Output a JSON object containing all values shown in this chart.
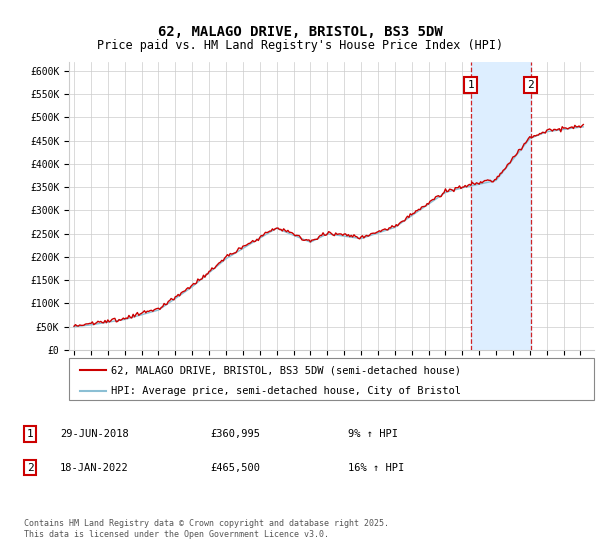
{
  "title": "62, MALAGO DRIVE, BRISTOL, BS3 5DW",
  "subtitle": "Price paid vs. HM Land Registry's House Price Index (HPI)",
  "legend_line1": "62, MALAGO DRIVE, BRISTOL, BS3 5DW (semi-detached house)",
  "legend_line2": "HPI: Average price, semi-detached house, City of Bristol",
  "footnote": "Contains HM Land Registry data © Crown copyright and database right 2025.\nThis data is licensed under the Open Government Licence v3.0.",
  "marker1_date": "29-JUN-2018",
  "marker1_price": "£360,995",
  "marker1_hpi": "9% ↑ HPI",
  "marker1_year": 2018.49,
  "marker1_value": 360995,
  "marker2_date": "18-JAN-2022",
  "marker2_price": "£465,500",
  "marker2_hpi": "16% ↑ HPI",
  "marker2_year": 2022.04,
  "marker2_value": 465500,
  "ylim": [
    0,
    620000
  ],
  "xlim_start": 1994.7,
  "xlim_end": 2025.8,
  "yticks": [
    0,
    50000,
    100000,
    150000,
    200000,
    250000,
    300000,
    350000,
    400000,
    450000,
    500000,
    550000,
    600000
  ],
  "ytick_labels": [
    "£0",
    "£50K",
    "£100K",
    "£150K",
    "£200K",
    "£250K",
    "£300K",
    "£350K",
    "£400K",
    "£450K",
    "£500K",
    "£550K",
    "£600K"
  ],
  "xticks": [
    1995,
    1996,
    1997,
    1998,
    1999,
    2000,
    2001,
    2002,
    2003,
    2004,
    2005,
    2006,
    2007,
    2008,
    2009,
    2010,
    2011,
    2012,
    2013,
    2014,
    2015,
    2016,
    2017,
    2018,
    2019,
    2020,
    2021,
    2022,
    2023,
    2024,
    2025
  ],
  "red_color": "#cc0000",
  "blue_color": "#8bbfd4",
  "shade_color": "#ddeeff",
  "grid_color": "#cccccc",
  "bg_color": "#ffffff",
  "title_fontsize": 10,
  "subtitle_fontsize": 8.5,
  "axis_fontsize": 7,
  "legend_fontsize": 7.5,
  "annotation_fontsize": 7.5
}
